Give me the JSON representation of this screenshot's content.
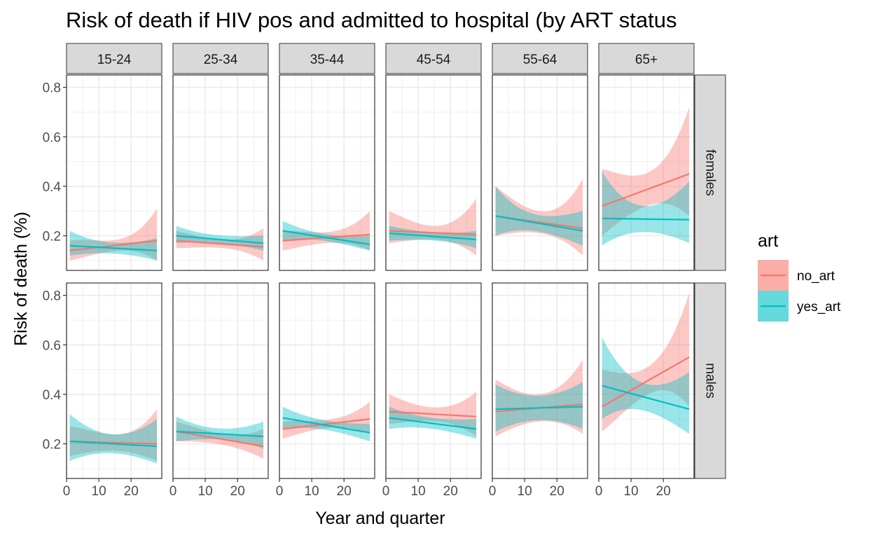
{
  "chart_data": {
    "type": "line",
    "title": "Risk of death if HIV pos and admitted to hospital (by ART status",
    "xlabel": "Year and quarter",
    "ylabel": "Risk of death (%)",
    "xlim": [
      0,
      29.5
    ],
    "ylim": [
      0.06,
      0.85
    ],
    "x_ticks": [
      0,
      10,
      20
    ],
    "y_ticks": [
      0.2,
      0.4,
      0.6,
      0.8
    ],
    "grid": true,
    "legend": {
      "title": "art",
      "position": "right"
    },
    "columns": [
      "15-24",
      "25-34",
      "35-44",
      "45-54",
      "55-64",
      "65+"
    ],
    "rows": [
      "females",
      "males"
    ],
    "series_styles": [
      {
        "name": "no_art",
        "color": "#F8766D"
      },
      {
        "name": "yes_art",
        "color": "#00BFC4"
      }
    ],
    "panels": [
      {
        "row": "females",
        "col": "15-24",
        "series": [
          {
            "name": "no_art",
            "x": [
              1,
              28
            ],
            "y": [
              0.14,
              0.18
            ],
            "lower": [
              0.1,
              0.1
            ],
            "upper": [
              0.18,
              0.31
            ]
          },
          {
            "name": "yes_art",
            "x": [
              1,
              28
            ],
            "y": [
              0.16,
              0.14
            ],
            "lower": [
              0.12,
              0.1
            ],
            "upper": [
              0.22,
              0.19
            ]
          }
        ]
      },
      {
        "row": "females",
        "col": "25-34",
        "series": [
          {
            "name": "no_art",
            "x": [
              1,
              28
            ],
            "y": [
              0.18,
              0.155
            ],
            "lower": [
              0.15,
              0.1
            ],
            "upper": [
              0.22,
              0.23
            ]
          },
          {
            "name": "yes_art",
            "x": [
              1,
              28
            ],
            "y": [
              0.2,
              0.17
            ],
            "lower": [
              0.17,
              0.14
            ],
            "upper": [
              0.24,
              0.2
            ]
          }
        ]
      },
      {
        "row": "females",
        "col": "35-44",
        "series": [
          {
            "name": "no_art",
            "x": [
              1,
              28
            ],
            "y": [
              0.18,
              0.205
            ],
            "lower": [
              0.14,
              0.14
            ],
            "upper": [
              0.22,
              0.3
            ]
          },
          {
            "name": "yes_art",
            "x": [
              1,
              28
            ],
            "y": [
              0.22,
              0.165
            ],
            "lower": [
              0.18,
              0.14
            ],
            "upper": [
              0.26,
              0.2
            ]
          }
        ]
      },
      {
        "row": "females",
        "col": "45-54",
        "series": [
          {
            "name": "no_art",
            "x": [
              1,
              28
            ],
            "y": [
              0.22,
              0.205
            ],
            "lower": [
              0.17,
              0.12
            ],
            "upper": [
              0.3,
              0.35
            ]
          },
          {
            "name": "yes_art",
            "x": [
              1,
              28
            ],
            "y": [
              0.21,
              0.185
            ],
            "lower": [
              0.18,
              0.15
            ],
            "upper": [
              0.24,
              0.22
            ]
          }
        ]
      },
      {
        "row": "females",
        "col": "55-64",
        "series": [
          {
            "name": "no_art",
            "x": [
              1,
              28
            ],
            "y": [
              0.28,
              0.23
            ],
            "lower": [
              0.2,
              0.12
            ],
            "upper": [
              0.4,
              0.43
            ]
          },
          {
            "name": "yes_art",
            "x": [
              1,
              28
            ],
            "y": [
              0.28,
              0.22
            ],
            "lower": [
              0.2,
              0.16
            ],
            "upper": [
              0.4,
              0.3
            ]
          }
        ]
      },
      {
        "row": "females",
        "col": "65+",
        "series": [
          {
            "name": "no_art",
            "x": [
              1,
              28
            ],
            "y": [
              0.32,
              0.45
            ],
            "lower": [
              0.2,
              0.28
            ],
            "upper": [
              0.47,
              0.72
            ]
          },
          {
            "name": "yes_art",
            "x": [
              1,
              28
            ],
            "y": [
              0.27,
              0.265
            ],
            "lower": [
              0.16,
              0.17
            ],
            "upper": [
              0.46,
              0.42
            ]
          }
        ]
      },
      {
        "row": "males",
        "col": "15-24",
        "series": [
          {
            "name": "no_art",
            "x": [
              1,
              28
            ],
            "y": [
              0.21,
              0.2
            ],
            "lower": [
              0.15,
              0.13
            ],
            "upper": [
              0.27,
              0.34
            ]
          },
          {
            "name": "yes_art",
            "x": [
              1,
              28
            ],
            "y": [
              0.21,
              0.19
            ],
            "lower": [
              0.13,
              0.12
            ],
            "upper": [
              0.32,
              0.3
            ]
          }
        ]
      },
      {
        "row": "males",
        "col": "25-34",
        "series": [
          {
            "name": "no_art",
            "x": [
              1,
              28
            ],
            "y": [
              0.25,
              0.19
            ],
            "lower": [
              0.21,
              0.14
            ],
            "upper": [
              0.29,
              0.26
            ]
          },
          {
            "name": "yes_art",
            "x": [
              1,
              28
            ],
            "y": [
              0.25,
              0.23
            ],
            "lower": [
              0.21,
              0.18
            ],
            "upper": [
              0.31,
              0.29
            ]
          }
        ]
      },
      {
        "row": "males",
        "col": "35-44",
        "series": [
          {
            "name": "no_art",
            "x": [
              1,
              28
            ],
            "y": [
              0.26,
              0.3
            ],
            "lower": [
              0.22,
              0.24
            ],
            "upper": [
              0.29,
              0.37
            ]
          },
          {
            "name": "yes_art",
            "x": [
              1,
              28
            ],
            "y": [
              0.305,
              0.245
            ],
            "lower": [
              0.26,
              0.21
            ],
            "upper": [
              0.35,
              0.28
            ]
          }
        ]
      },
      {
        "row": "males",
        "col": "45-54",
        "series": [
          {
            "name": "no_art",
            "x": [
              1,
              28
            ],
            "y": [
              0.33,
              0.31
            ],
            "lower": [
              0.28,
              0.23
            ],
            "upper": [
              0.4,
              0.41
            ]
          },
          {
            "name": "yes_art",
            "x": [
              1,
              28
            ],
            "y": [
              0.305,
              0.26
            ],
            "lower": [
              0.26,
              0.22
            ],
            "upper": [
              0.35,
              0.3
            ]
          }
        ]
      },
      {
        "row": "males",
        "col": "55-64",
        "series": [
          {
            "name": "no_art",
            "x": [
              1,
              28
            ],
            "y": [
              0.33,
              0.36
            ],
            "lower": [
              0.23,
              0.24
            ],
            "upper": [
              0.46,
              0.54
            ]
          },
          {
            "name": "yes_art",
            "x": [
              1,
              28
            ],
            "y": [
              0.34,
              0.35
            ],
            "lower": [
              0.25,
              0.26
            ],
            "upper": [
              0.44,
              0.45
            ]
          }
        ]
      },
      {
        "row": "males",
        "col": "65+",
        "series": [
          {
            "name": "no_art",
            "x": [
              1,
              28
            ],
            "y": [
              0.35,
              0.55
            ],
            "lower": [
              0.25,
              0.35
            ],
            "upper": [
              0.5,
              0.81
            ]
          },
          {
            "name": "yes_art",
            "x": [
              1,
              28
            ],
            "y": [
              0.435,
              0.34
            ],
            "lower": [
              0.3,
              0.24
            ],
            "upper": [
              0.63,
              0.49
            ]
          }
        ]
      }
    ]
  }
}
